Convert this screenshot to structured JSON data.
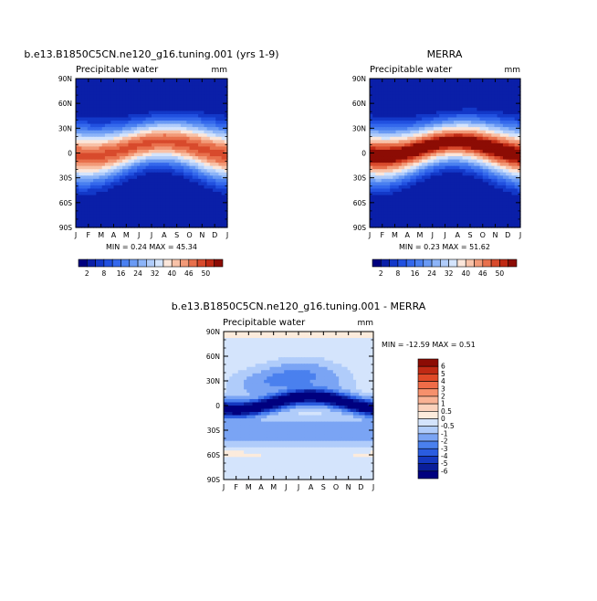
{
  "panels": [
    {
      "title": "b.e13.B1850C5CN.ne120_g16.tuning.001 (yrs 1-9)",
      "variable": "Precipitable water",
      "units": "mm",
      "stats": "MIN =    0.24 MAX =   45.34"
    },
    {
      "title": "MERRA",
      "variable": "Precipitable water",
      "units": "mm",
      "stats": "MIN =    0.23 MAX =   51.62"
    },
    {
      "title": "b.e13.B1850C5CN.ne120_g16.tuning.001  -  MERRA",
      "variable": "Precipitable water",
      "units": "mm",
      "stats": "MIN = -12.59 MAX =    0.51"
    }
  ],
  "chart_data": [
    {
      "type": "heatmap",
      "title": "b.e13.B1850C5CN.ne120_g16.tuning.001 (yrs 1-9)",
      "variable": "Precipitable water",
      "units": "mm",
      "x_ticks": [
        "J",
        "F",
        "M",
        "A",
        "M",
        "J",
        "J",
        "A",
        "S",
        "O",
        "N",
        "D",
        "J"
      ],
      "y_ticks": [
        "90N",
        "60N",
        "30N",
        "0",
        "30S",
        "60S",
        "90S"
      ],
      "min": 0.24,
      "max": 45.34,
      "colorbar_levels": [
        "2",
        "8",
        "16",
        "24",
        "32",
        "40",
        "46",
        "50"
      ]
    },
    {
      "type": "heatmap",
      "title": "MERRA",
      "variable": "Precipitable water",
      "units": "mm",
      "x_ticks": [
        "J",
        "F",
        "M",
        "A",
        "M",
        "J",
        "J",
        "A",
        "S",
        "O",
        "N",
        "D",
        "J"
      ],
      "y_ticks": [
        "90N",
        "60N",
        "30N",
        "0",
        "30S",
        "60S",
        "90S"
      ],
      "min": 0.23,
      "max": 51.62,
      "colorbar_levels": [
        "2",
        "8",
        "16",
        "24",
        "32",
        "40",
        "46",
        "50"
      ]
    },
    {
      "type": "heatmap",
      "title": "b.e13.B1850C5CN.ne120_g16.tuning.001  -  MERRA",
      "variable": "Precipitable water",
      "units": "mm",
      "x_ticks": [
        "J",
        "F",
        "M",
        "A",
        "M",
        "J",
        "J",
        "A",
        "S",
        "O",
        "N",
        "D",
        "J"
      ],
      "y_ticks": [
        "90N",
        "60N",
        "30N",
        "0",
        "30S",
        "60S",
        "90S"
      ],
      "min": -12.59,
      "max": 0.51,
      "colorbar_levels": [
        "6",
        "5",
        "4",
        "3",
        "2",
        "1",
        "0.5",
        "0",
        "-0.5",
        "-1",
        "-2",
        "-3",
        "-4",
        "-5",
        "-6"
      ]
    }
  ],
  "colors": {
    "abs_scale": [
      "#00007f",
      "#0a1fa8",
      "#1338c8",
      "#2150e0",
      "#3468ec",
      "#4a80f0",
      "#6a9af4",
      "#8cb4f8",
      "#b0ccfa",
      "#d4e4fc",
      "#fbe6da",
      "#f8c2a8",
      "#f29a78",
      "#e8704c",
      "#d84a2c",
      "#c02a14",
      "#8c0c04"
    ],
    "diff_scale": [
      "#8c0c04",
      "#c02a14",
      "#e04a28",
      "#f06c48",
      "#f6906c",
      "#f9b294",
      "#fbd2bc",
      "#fcebdc",
      "#d4e4fc",
      "#b0ccfa",
      "#7aa4f4",
      "#4a80ee",
      "#2a5ce0",
      "#1438c0",
      "#0a1e9a",
      "#00007f"
    ]
  }
}
